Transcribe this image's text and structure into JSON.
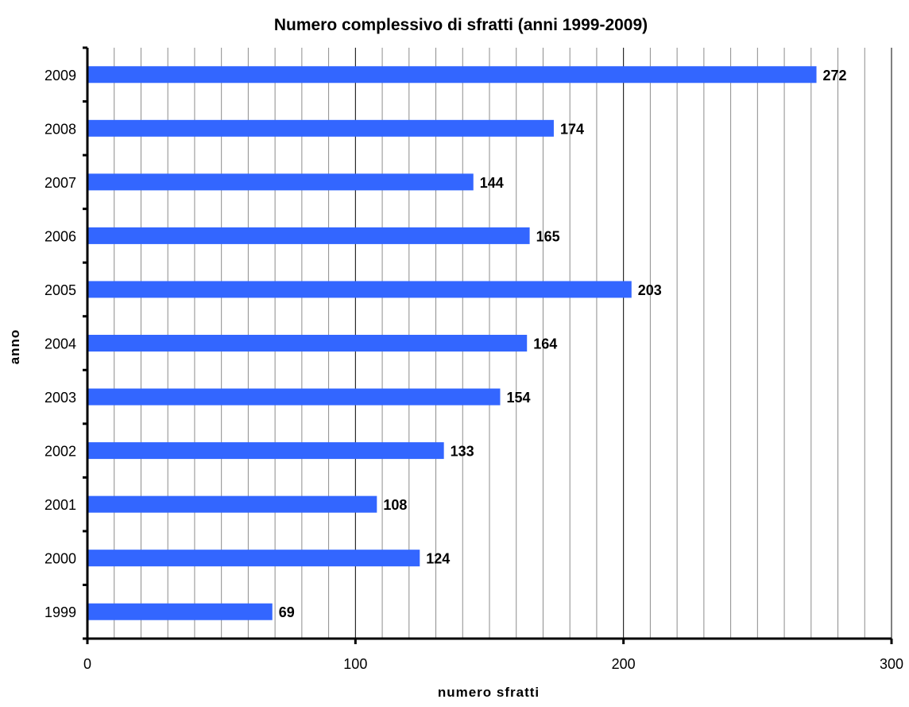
{
  "chart_data": {
    "type": "bar",
    "orientation": "horizontal",
    "title": "Numero complessivo di sfratti (anni 1999-2009)",
    "xlabel": "numero sfratti",
    "ylabel": "anno",
    "categories": [
      "1999",
      "2000",
      "2001",
      "2002",
      "2003",
      "2004",
      "2005",
      "2006",
      "2007",
      "2008",
      "2009"
    ],
    "values": [
      69,
      124,
      108,
      133,
      154,
      164,
      203,
      165,
      144,
      174,
      272
    ],
    "xlim": [
      0,
      300
    ],
    "x_ticks": [
      "0",
      "100",
      "200",
      "300"
    ],
    "grid": true,
    "bar_color": "#3366FF",
    "data_labels": true
  }
}
